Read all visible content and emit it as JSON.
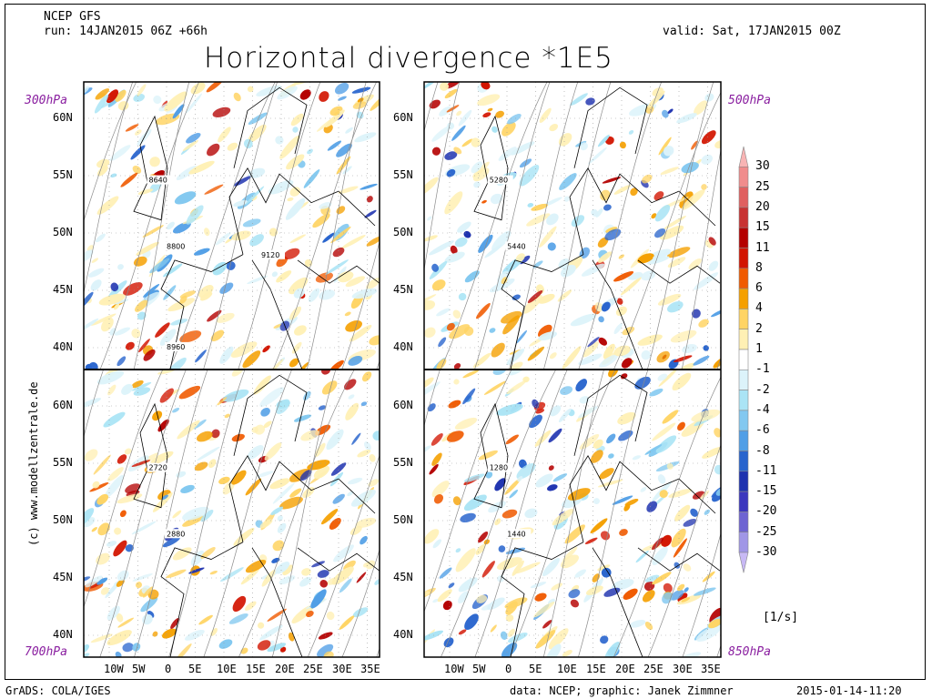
{
  "header": {
    "model": "NCEP GFS",
    "run": "run: 14JAN2015 06Z +66h",
    "valid": "valid: Sat, 17JAN2015 00Z",
    "title": "Horizontal divergence *1E5"
  },
  "panels": [
    {
      "level": "300hPa",
      "contour_labels": [
        "8640",
        "8800",
        "9120",
        "8960"
      ]
    },
    {
      "level": "500hPa",
      "contour_labels": [
        "5280",
        "5440"
      ]
    },
    {
      "level": "700hPa",
      "contour_labels": [
        "2720",
        "2880"
      ]
    },
    {
      "level": "850hPa",
      "contour_labels": [
        "1280",
        "1440"
      ]
    }
  ],
  "axes": {
    "lat_ticks": [
      "60N",
      "55N",
      "50N",
      "45N",
      "40N"
    ],
    "lon_ticks": [
      "10W",
      "5W",
      "0",
      "5E",
      "10E",
      "15E",
      "20E",
      "25E",
      "30E",
      "35E"
    ]
  },
  "legend": {
    "levels": [
      "30",
      "25",
      "20",
      "15",
      "11",
      "8",
      "6",
      "4",
      "2",
      "1",
      "-1",
      "-2",
      "-4",
      "-6",
      "-8",
      "-11",
      "-15",
      "-20",
      "-25",
      "-30"
    ],
    "colors": [
      "#f8b4b4",
      "#f08c8c",
      "#e06060",
      "#c83232",
      "#b40000",
      "#d21400",
      "#f05a00",
      "#f5a000",
      "#ffd464",
      "#fff0b4",
      "#ffffff",
      "#dcf3fa",
      "#aae4f5",
      "#82c8f0",
      "#509ee6",
      "#2864cd",
      "#1e32af",
      "#3c37be",
      "#6e64d2",
      "#a096e6",
      "#c8b9f5"
    ],
    "unit": "[1/s]"
  },
  "footer": {
    "left": "GrADS: COLA/IGES",
    "center": "data: NCEP; graphic: Janek Zimmner",
    "right": "2015-01-14-11:20"
  },
  "credit": "(c) www.modellzentrale.de"
}
